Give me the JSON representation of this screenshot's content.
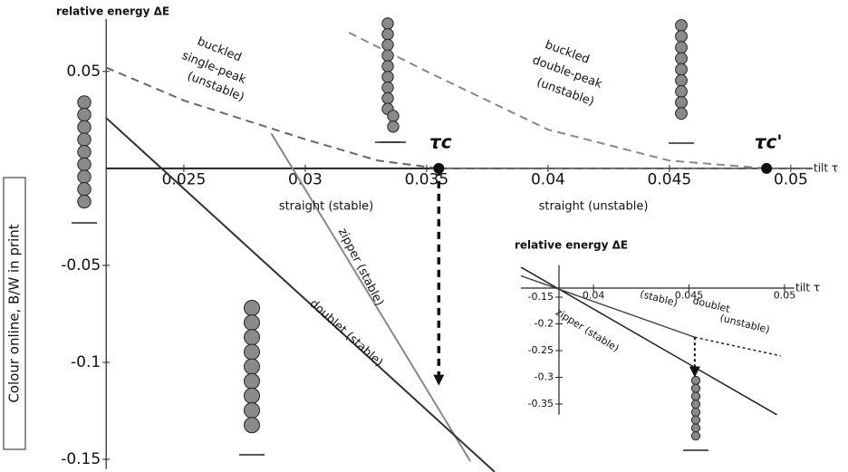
{
  "side_note": "Colour online, B/W in print",
  "chart_data": [
    {
      "type": "line",
      "y_label": "relative energy ΔE",
      "x_label": "tilt τ",
      "xlim": [
        0.0218,
        0.0509
      ],
      "ylim": [
        -0.155,
        0.077
      ],
      "xticks": [
        0.025,
        0.03,
        0.035,
        0.04,
        0.045,
        0.05
      ],
      "yticks": [
        0.05,
        -0.05,
        -0.1,
        -0.15
      ],
      "series": [
        {
          "x": [
            0.0218,
            0.0355
          ],
          "values": [
            0,
            0
          ],
          "color": "#222222",
          "dash": "solid"
        },
        {
          "x": [
            0.0355,
            0.0509
          ],
          "values": [
            0,
            0
          ],
          "color": "#555555",
          "dash": "dashed"
        },
        {
          "x": [
            0.0218,
            0.025,
            0.03,
            0.033,
            0.0355
          ],
          "values": [
            0.052,
            0.035,
            0.015,
            0.004,
            0
          ],
          "color": "#666666",
          "dash": "dashed"
        },
        {
          "x": [
            0.0318,
            0.035,
            0.04,
            0.045,
            0.049
          ],
          "values": [
            0.07,
            0.05,
            0.02,
            0.004,
            0
          ],
          "color": "#888888",
          "dash": "dashed"
        },
        {
          "x": [
            0.0286,
            0.0368
          ],
          "values": [
            0.018,
            -0.151
          ],
          "color": "#888888",
          "dash": "solid"
        },
        {
          "x": [
            0.0218,
            0.0378
          ],
          "values": [
            0.026,
            -0.1565
          ],
          "color": "#333333",
          "dash": "solid"
        }
      ],
      "points": [
        {
          "label": "τc",
          "x": 0.0355,
          "y": 0
        },
        {
          "label": "τc'",
          "x": 0.049,
          "y": 0
        }
      ],
      "arrows": [
        {
          "x": 0.0355,
          "from": 0,
          "to": -0.112
        }
      ],
      "annotations": [
        "buckled",
        "single-peak",
        "(unstable)",
        "buckled",
        "double-peak",
        "(unstable)",
        "straight (stable)",
        "straight (unstable)",
        "zipper (stable)",
        "doublet (stable)"
      ]
    },
    {
      "type": "line",
      "y_label": "relative energy ΔE",
      "x_label": "tilt τ",
      "xlim": [
        0.0362,
        0.0505
      ],
      "ylim": [
        -0.37,
        -0.09
      ],
      "xticks": [
        0.04,
        0.045,
        0.05
      ],
      "yticks": [
        -0.15,
        -0.2,
        -0.25,
        -0.3,
        -0.35
      ],
      "series": [
        {
          "x": [
            0.0362,
            0.0496
          ],
          "values": [
            -0.094,
            -0.37
          ],
          "color": "#222222",
          "dash": "solid"
        },
        {
          "x": [
            0.0362,
            0.0453
          ],
          "values": [
            -0.11,
            -0.225
          ],
          "color": "#444444",
          "dash": "solid"
        },
        {
          "x": [
            0.0453,
            0.0498
          ],
          "values": [
            -0.225,
            -0.26
          ],
          "color": "#222222",
          "dash": "dotted"
        }
      ],
      "points": [],
      "arrows": [
        {
          "x": 0.0453,
          "from": -0.225,
          "to": -0.3
        }
      ],
      "annotations": [
        "zipper (stable)",
        "(stable)",
        "doublet",
        "(unstable)"
      ]
    }
  ]
}
